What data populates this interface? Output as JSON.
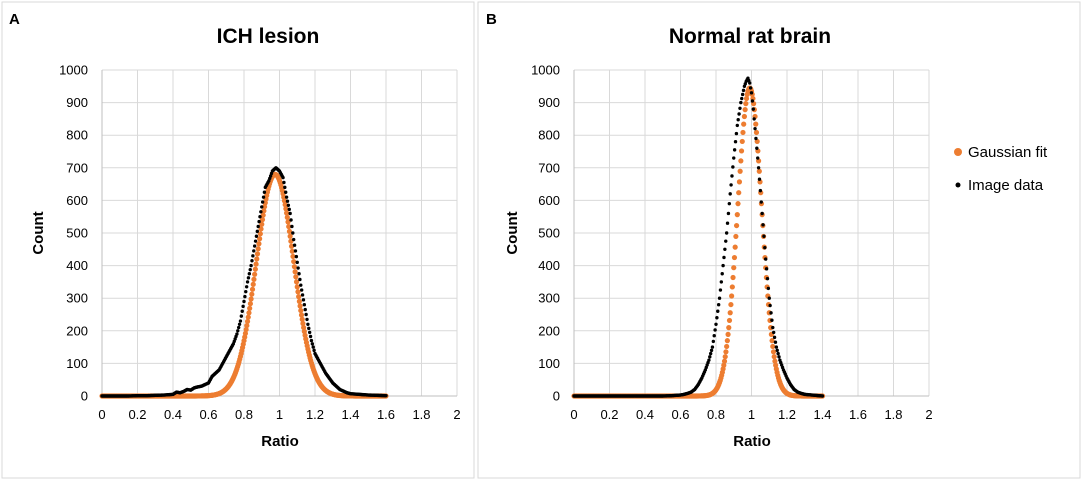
{
  "chart_data": [
    {
      "type": "scatter",
      "panel_label": "A",
      "title": "ICH lesion",
      "xlabel": "Ratio",
      "ylabel": "Count",
      "xlim": [
        0,
        2
      ],
      "ylim": [
        0,
        1000
      ],
      "xticks": [
        "0",
        "0.2",
        "0.4",
        "0.6",
        "0.8",
        "1",
        "1.2",
        "1.4",
        "1.6",
        "1.8",
        "2"
      ],
      "yticks": [
        "0",
        "100",
        "200",
        "300",
        "400",
        "500",
        "600",
        "700",
        "800",
        "900",
        "1000"
      ],
      "series": [
        {
          "name": "Gaussian fit",
          "color": "#ed7d31",
          "model": "gaussian",
          "amplitude": 680,
          "mean": 0.975,
          "sigma": 0.105,
          "x_range": [
            0,
            1.6
          ]
        },
        {
          "name": "Image data",
          "color": "#000000",
          "x": [
            0.0,
            0.05,
            0.1,
            0.15,
            0.2,
            0.25,
            0.3,
            0.35,
            0.4,
            0.42,
            0.44,
            0.46,
            0.48,
            0.5,
            0.52,
            0.54,
            0.56,
            0.58,
            0.6,
            0.62,
            0.64,
            0.66,
            0.68,
            0.7,
            0.72,
            0.74,
            0.76,
            0.78,
            0.8,
            0.82,
            0.84,
            0.86,
            0.88,
            0.9,
            0.92,
            0.94,
            0.96,
            0.98,
            1.0,
            1.02,
            1.04,
            1.06,
            1.08,
            1.1,
            1.12,
            1.14,
            1.16,
            1.18,
            1.2,
            1.22,
            1.24,
            1.26,
            1.28,
            1.3,
            1.32,
            1.34,
            1.36,
            1.38,
            1.4,
            1.45,
            1.5,
            1.55,
            1.6
          ],
          "y": [
            0,
            0,
            0,
            0,
            1,
            1,
            2,
            3,
            5,
            12,
            10,
            14,
            20,
            18,
            25,
            28,
            30,
            35,
            40,
            60,
            70,
            80,
            100,
            120,
            140,
            160,
            190,
            230,
            290,
            350,
            400,
            460,
            520,
            580,
            640,
            660,
            690,
            700,
            690,
            670,
            610,
            560,
            480,
            410,
            340,
            280,
            220,
            170,
            130,
            110,
            90,
            70,
            55,
            40,
            30,
            20,
            15,
            10,
            7,
            5,
            3,
            2,
            1
          ]
        }
      ]
    },
    {
      "type": "scatter",
      "panel_label": "B",
      "title": "Normal rat brain",
      "xlabel": "Ratio",
      "ylabel": "Count",
      "xlim": [
        0,
        2
      ],
      "ylim": [
        0,
        1000
      ],
      "xticks": [
        "0",
        "0.2",
        "0.4",
        "0.6",
        "0.8",
        "1",
        "1.2",
        "1.4",
        "1.6",
        "1.8",
        "2"
      ],
      "yticks": [
        "0",
        "100",
        "200",
        "300",
        "400",
        "500",
        "600",
        "700",
        "800",
        "900",
        "1000"
      ],
      "legend_position": "right",
      "series": [
        {
          "name": "Gaussian fit",
          "color": "#ed7d31",
          "model": "gaussian",
          "amplitude": 945,
          "mean": 0.99,
          "sigma": 0.068,
          "x_range": [
            0,
            1.4
          ]
        },
        {
          "name": "Image data",
          "color": "#000000",
          "x": [
            0.0,
            0.05,
            0.1,
            0.15,
            0.2,
            0.25,
            0.3,
            0.35,
            0.4,
            0.45,
            0.5,
            0.55,
            0.6,
            0.62,
            0.64,
            0.66,
            0.68,
            0.7,
            0.72,
            0.74,
            0.76,
            0.78,
            0.8,
            0.82,
            0.84,
            0.86,
            0.88,
            0.9,
            0.92,
            0.94,
            0.96,
            0.97,
            0.98,
            0.99,
            1.0,
            1.01,
            1.02,
            1.04,
            1.06,
            1.08,
            1.1,
            1.12,
            1.14,
            1.16,
            1.18,
            1.2,
            1.22,
            1.24,
            1.26,
            1.28,
            1.3,
            1.32,
            1.34,
            1.36,
            1.38,
            1.4
          ],
          "y": [
            0,
            0,
            0,
            0,
            0,
            0,
            0,
            0,
            0,
            0,
            0,
            1,
            3,
            5,
            8,
            12,
            20,
            35,
            55,
            80,
            110,
            150,
            220,
            300,
            400,
            500,
            620,
            730,
            830,
            900,
            950,
            965,
            975,
            960,
            930,
            880,
            820,
            700,
            560,
            420,
            300,
            210,
            150,
            110,
            80,
            55,
            35,
            20,
            12,
            8,
            5,
            4,
            3,
            2,
            1,
            0
          ]
        }
      ]
    }
  ],
  "legend": {
    "items": [
      {
        "label": "Gaussian fit",
        "color": "#ed7d31"
      },
      {
        "label": "Image data",
        "color": "#000000"
      }
    ]
  }
}
